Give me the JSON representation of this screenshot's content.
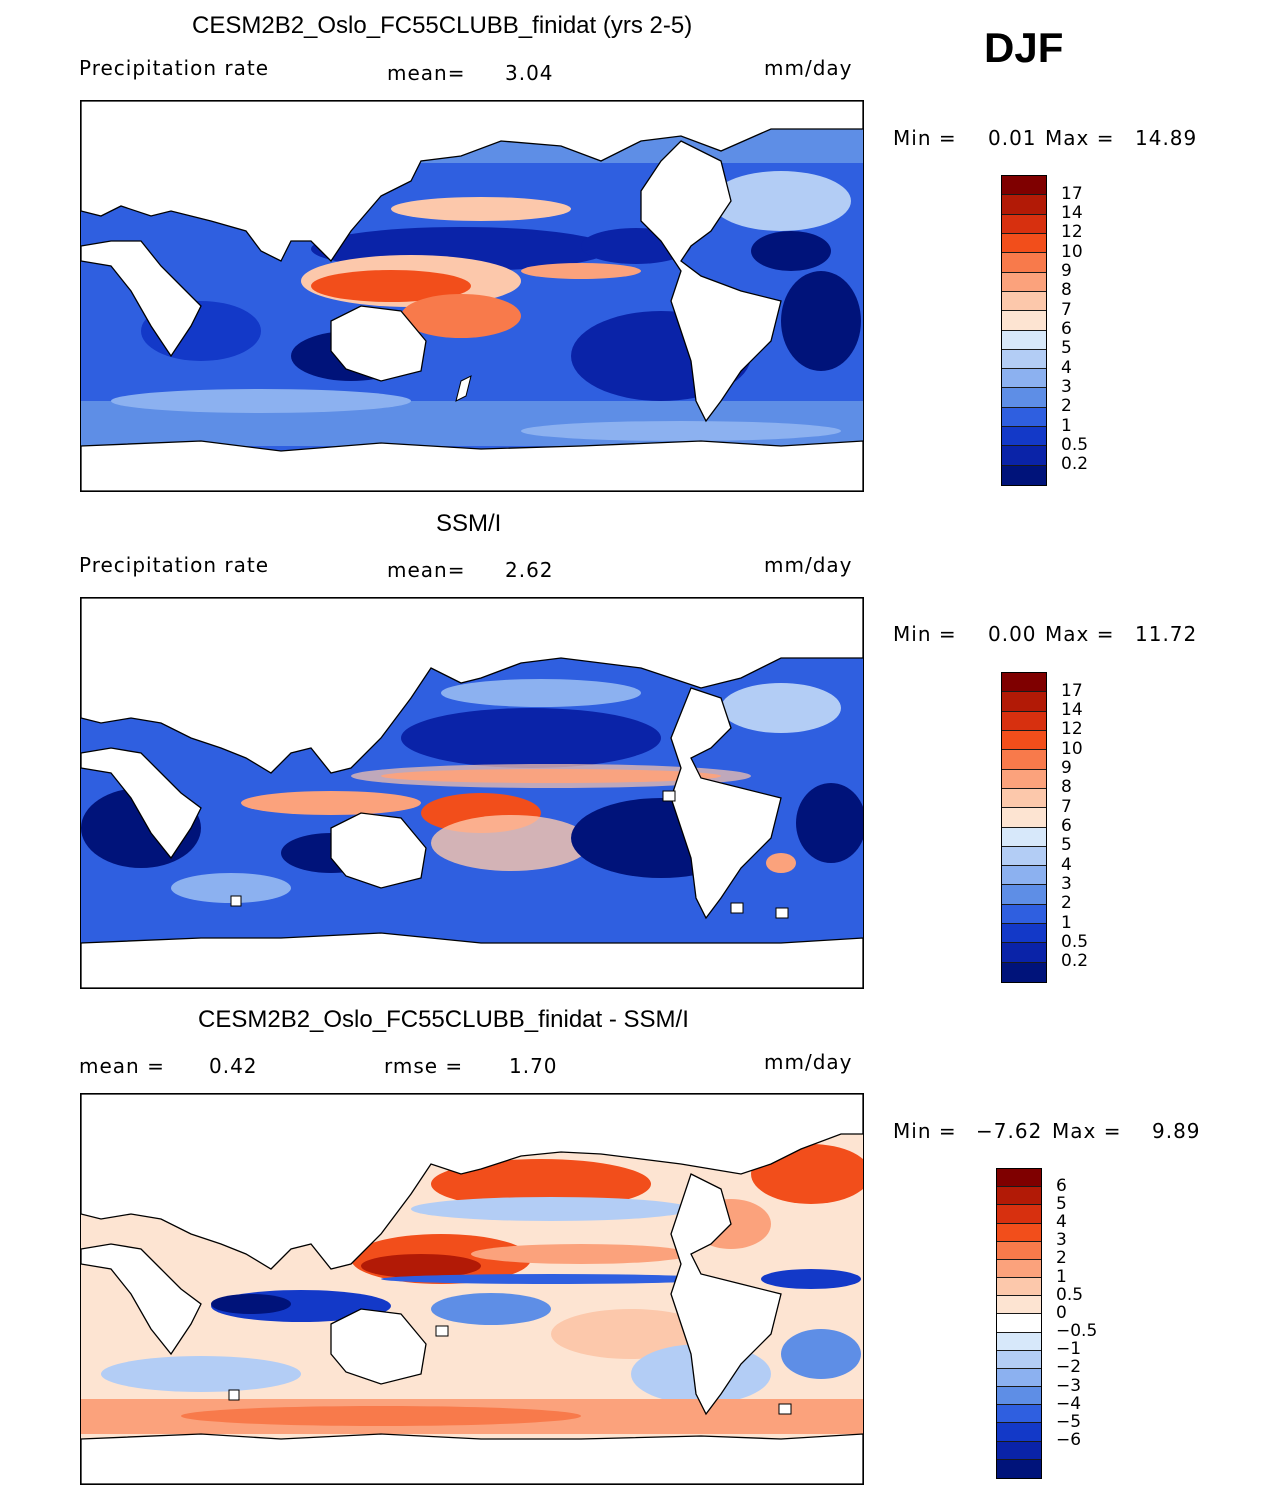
{
  "season": "DJF",
  "panels": [
    {
      "id": "model",
      "title": "CESM2B2_Oslo_FC55CLUBB_finidat (yrs 2-5)",
      "left_label": "Precipitation rate",
      "mid_label": "mean=",
      "mid_value": "3.04",
      "units": "mm/day",
      "min_label": "Min =",
      "min_value": "0.01",
      "max_label": "Max =",
      "max_value": "14.89",
      "colorbar_ticks": [
        "17",
        "14",
        "12",
        "10",
        "9",
        "8",
        "7",
        "6",
        "5",
        "4",
        "3",
        "2",
        "1",
        "0.5",
        "0.2"
      ]
    },
    {
      "id": "obs",
      "title": "SSM/I",
      "left_label": "Precipitation rate",
      "mid_label": "mean=",
      "mid_value": "2.62",
      "units": "mm/day",
      "min_label": "Min =",
      "min_value": "0.00",
      "max_label": "Max =",
      "max_value": "11.72",
      "colorbar_ticks": [
        "17",
        "14",
        "12",
        "10",
        "9",
        "8",
        "7",
        "6",
        "5",
        "4",
        "3",
        "2",
        "1",
        "0.5",
        "0.2"
      ]
    },
    {
      "id": "diff",
      "title": "CESM2B2_Oslo_FC55CLUBB_finidat - SSM/I",
      "left_label": "mean =",
      "left_value": "0.42",
      "mid_label": "rmse =",
      "mid_value": "1.70",
      "units": "mm/day",
      "min_label": "Min =",
      "min_value": "−7.62",
      "max_label": "Max =",
      "max_value": "9.89",
      "colorbar_ticks": [
        "6",
        "5",
        "4",
        "3",
        "2",
        "1",
        "0.5",
        "0",
        "−0.5",
        "−1",
        "−2",
        "−3",
        "−4",
        "−5",
        "−6"
      ]
    }
  ],
  "colors": {
    "seq_scale": [
      "#7f0000",
      "#b21a06",
      "#d7300f",
      "#f24e1b",
      "#f87a4b",
      "#fba27c",
      "#fcc8ab",
      "#fde4d2",
      "#d7e8fa",
      "#b3cdf5",
      "#8cb1f0",
      "#5e8ee6",
      "#2f5fe0",
      "#1339c8",
      "#0a23a8",
      "#00137a"
    ],
    "div_scale": [
      "#7f0000",
      "#b21a06",
      "#d7300f",
      "#f24e1b",
      "#f87a4b",
      "#fba27c",
      "#fcc8ab",
      "#fde4d2",
      "#ffffff",
      "#d7e8fa",
      "#b3cdf5",
      "#8cb1f0",
      "#5e8ee6",
      "#2f5fe0",
      "#1339c8",
      "#0a23a8",
      "#00137a"
    ]
  }
}
